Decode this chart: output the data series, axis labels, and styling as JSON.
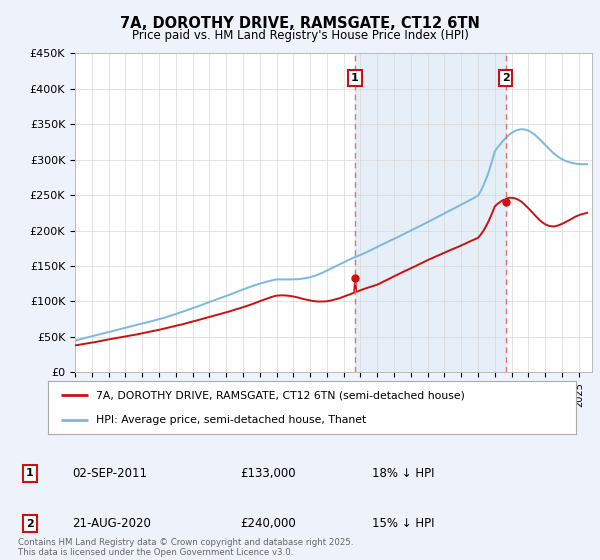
{
  "title": "7A, DOROTHY DRIVE, RAMSGATE, CT12 6TN",
  "subtitle": "Price paid vs. HM Land Registry's House Price Index (HPI)",
  "legend_line1": "7A, DOROTHY DRIVE, RAMSGATE, CT12 6TN (semi-detached house)",
  "legend_line2": "HPI: Average price, semi-detached house, Thanet",
  "annotation1_date": "02-SEP-2011",
  "annotation1_price": "£133,000",
  "annotation1_hpi": "18% ↓ HPI",
  "annotation2_date": "21-AUG-2020",
  "annotation2_price": "£240,000",
  "annotation2_hpi": "15% ↓ HPI",
  "footer": "Contains HM Land Registry data © Crown copyright and database right 2025.\nThis data is licensed under the Open Government Licence v3.0.",
  "ylim": [
    0,
    450000
  ],
  "yticks": [
    0,
    50000,
    100000,
    150000,
    200000,
    250000,
    300000,
    350000,
    400000,
    450000
  ],
  "ytick_labels": [
    "£0",
    "£50K",
    "£100K",
    "£150K",
    "£200K",
    "£250K",
    "£300K",
    "£350K",
    "£400K",
    "£450K"
  ],
  "xlim_start": 1995.0,
  "xlim_end": 2025.8,
  "sale1_year": 2011.67,
  "sale2_year": 2020.64,
  "sale1_price": 133000,
  "sale2_price": 240000,
  "hpi_color": "#7ab8e0",
  "price_color": "#cc1111",
  "sale_marker_color": "#cc1111",
  "dashed_line_color": "#e87070",
  "background_color": "#eef2fb",
  "plot_bg_color": "#ffffff",
  "grid_color": "#d8d8d8",
  "shade_color": "#dce8f5"
}
